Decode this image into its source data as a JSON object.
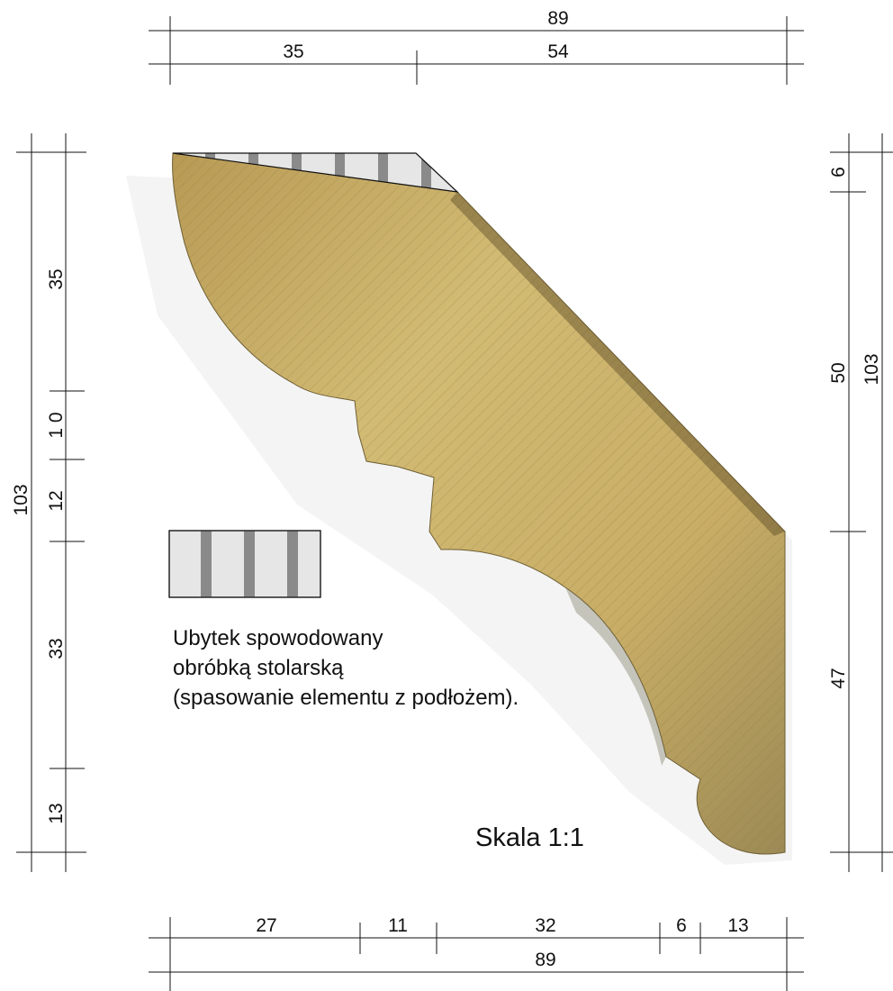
{
  "dimensions": {
    "top_total": "89",
    "top_parts": [
      "35",
      "54"
    ],
    "bottom_parts": [
      "27",
      "11",
      "32",
      "6",
      "13"
    ],
    "bottom_total": "89",
    "left_parts": [
      "35",
      "1 0",
      "12",
      "33",
      "13"
    ],
    "left_total": "103",
    "right_parts": [
      "6",
      "50",
      "47"
    ],
    "right_total": "103"
  },
  "legend": {
    "lines": [
      "Ubytek spowodowany",
      "obróbką stolarską",
      "(spasowanie elementu z podłożem)."
    ]
  },
  "scale_label": "Skala 1:1",
  "colors": {
    "wood": "#c9b06a",
    "hatch_fill": "#e6e6e6",
    "hatch_stripe": "#8a8a8a",
    "line": "#111111"
  }
}
